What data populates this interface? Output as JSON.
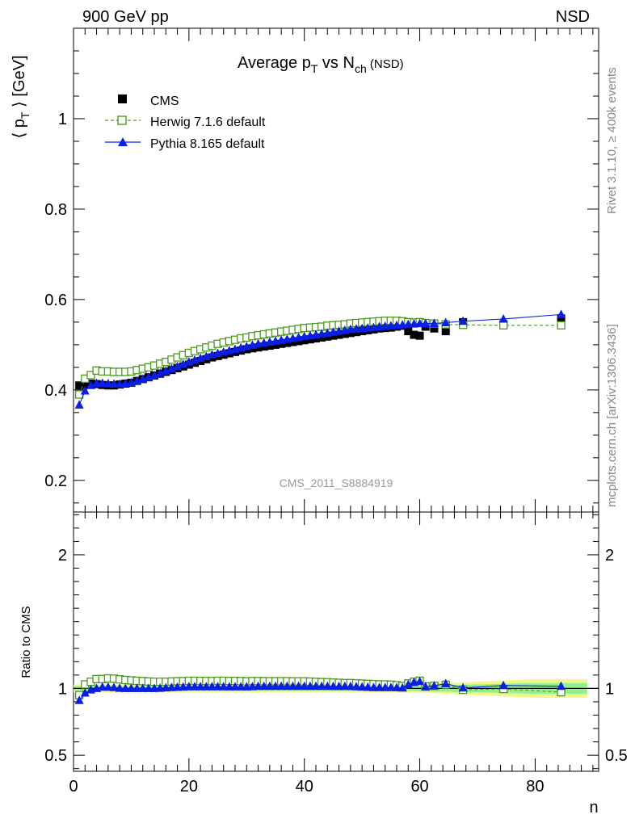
{
  "header": {
    "energy": "900 GeV pp",
    "process": "NSD",
    "title_main": "Average p",
    "title_sub_t": "T",
    "title_vs": " vs N",
    "title_sub_ch": "ch",
    "title_tail": " (NSD)",
    "ylabel_open": "⟨ p",
    "ylabel_sub": "T",
    "ylabel_close": " ⟩ [GeV]",
    "xlabel": "n",
    "ratio_label": "Ratio to CMS",
    "analysis": "CMS_2011_S8884919",
    "side_rivet": "Rivet 3.1.10, ≥ 400k events",
    "side_mcplots": "mcplots.cern.ch [arXiv:1306.3436]"
  },
  "colors": {
    "cms": "#000000",
    "herwig": "#4a9a1e",
    "pythia": "#0a1ee8",
    "band_outer": "#f3f78a",
    "band_inner": "#8ff28f"
  },
  "chart_data": {
    "type": "scatter",
    "xlim": [
      0,
      91
    ],
    "main": {
      "ylim": [
        0.13,
        1.2
      ],
      "yticks": [
        0.2,
        0.4,
        0.6,
        0.8,
        1
      ],
      "ytick_labels": [
        "0.2",
        "0.4",
        "0.6",
        "0.8",
        "1"
      ]
    },
    "ratio": {
      "ylim": [
        0.38,
        2.32
      ],
      "yticks": [
        0.5,
        1,
        2
      ],
      "ytick_labels": [
        "0.5",
        "1",
        "2"
      ]
    },
    "xticks": [
      0,
      20,
      40,
      60,
      80
    ],
    "xtick_labels": [
      "0",
      "20",
      "40",
      "60",
      "80"
    ],
    "legend": [
      {
        "key": "cms",
        "label": "CMS",
        "marker": "square-filled"
      },
      {
        "key": "herwig",
        "label": "Herwig 7.1.6 default",
        "marker": "square-open",
        "line": "dashed"
      },
      {
        "key": "pythia",
        "label": "Pythia 8.165 default",
        "marker": "triangle-filled",
        "line": "solid"
      }
    ],
    "x": [
      1,
      2,
      3,
      4,
      5,
      6,
      7,
      8,
      9,
      10,
      11,
      12,
      13,
      14,
      15,
      16,
      17,
      18,
      19,
      20,
      21,
      22,
      23,
      24,
      25,
      26,
      27,
      28,
      29,
      30,
      31,
      32,
      33,
      34,
      35,
      36,
      37,
      38,
      39,
      40,
      41,
      42,
      43,
      44,
      45,
      46,
      47,
      48,
      49,
      50,
      51,
      52,
      53,
      54,
      55,
      56,
      57,
      58,
      59,
      60,
      61,
      62.5,
      64.5,
      67.5,
      74.5,
      84.5
    ],
    "series": [
      {
        "name": "CMS",
        "key": "cms",
        "values": [
          0.41,
          0.412,
          0.414,
          0.413,
          0.411,
          0.41,
          0.41,
          0.412,
          0.414,
          0.416,
          0.42,
          0.424,
          0.428,
          0.432,
          0.436,
          0.44,
          0.444,
          0.448,
          0.452,
          0.456,
          0.46,
          0.464,
          0.468,
          0.472,
          0.475,
          0.478,
          0.481,
          0.484,
          0.487,
          0.49,
          0.492,
          0.494,
          0.496,
          0.498,
          0.5,
          0.502,
          0.504,
          0.506,
          0.508,
          0.51,
          0.512,
          0.514,
          0.516,
          0.518,
          0.52,
          0.522,
          0.524,
          0.526,
          0.528,
          0.53,
          0.532,
          0.534,
          0.536,
          0.537,
          0.538,
          0.54,
          0.542,
          0.53,
          0.522,
          0.52,
          0.54,
          0.536,
          0.53,
          0.55,
          0.545,
          0.558
        ]
      },
      {
        "name": "Herwig 7.1.6 default",
        "key": "herwig",
        "values": [
          0.39,
          0.425,
          0.433,
          0.443,
          0.441,
          0.441,
          0.44,
          0.44,
          0.44,
          0.441,
          0.444,
          0.447,
          0.45,
          0.454,
          0.458,
          0.462,
          0.467,
          0.472,
          0.477,
          0.482,
          0.486,
          0.49,
          0.494,
          0.498,
          0.502,
          0.505,
          0.508,
          0.511,
          0.514,
          0.516,
          0.519,
          0.521,
          0.523,
          0.525,
          0.527,
          0.529,
          0.531,
          0.533,
          0.535,
          0.537,
          0.538,
          0.539,
          0.54,
          0.542,
          0.543,
          0.544,
          0.545,
          0.547,
          0.548,
          0.549,
          0.55,
          0.551,
          0.552,
          0.553,
          0.553,
          0.553,
          0.552,
          0.55,
          0.549,
          0.55,
          0.548,
          0.547,
          0.545,
          0.544,
          0.543,
          0.543
        ]
      },
      {
        "name": "Pythia 8.165 default",
        "key": "pythia",
        "values": [
          0.367,
          0.398,
          0.41,
          0.415,
          0.415,
          0.414,
          0.413,
          0.413,
          0.414,
          0.416,
          0.42,
          0.424,
          0.428,
          0.432,
          0.437,
          0.442,
          0.447,
          0.452,
          0.457,
          0.462,
          0.466,
          0.47,
          0.474,
          0.478,
          0.481,
          0.484,
          0.487,
          0.49,
          0.493,
          0.496,
          0.499,
          0.502,
          0.504,
          0.506,
          0.508,
          0.51,
          0.512,
          0.514,
          0.516,
          0.518,
          0.52,
          0.522,
          0.524,
          0.526,
          0.528,
          0.53,
          0.532,
          0.534,
          0.535,
          0.536,
          0.537,
          0.538,
          0.54,
          0.541,
          0.542,
          0.543,
          0.544,
          0.545,
          0.546,
          0.547,
          0.547,
          0.547,
          0.549,
          0.552,
          0.557,
          0.567
        ]
      }
    ],
    "ratio_series": [
      {
        "name": "Herwig 7.1.6 default",
        "key": "herwig",
        "values": [
          0.95,
          1.03,
          1.05,
          1.07,
          1.07,
          1.075,
          1.073,
          1.068,
          1.063,
          1.06,
          1.057,
          1.055,
          1.052,
          1.05,
          1.05,
          1.05,
          1.052,
          1.054,
          1.055,
          1.057,
          1.057,
          1.056,
          1.056,
          1.055,
          1.057,
          1.057,
          1.056,
          1.056,
          1.055,
          1.053,
          1.055,
          1.055,
          1.054,
          1.054,
          1.054,
          1.054,
          1.054,
          1.053,
          1.053,
          1.053,
          1.051,
          1.049,
          1.047,
          1.046,
          1.044,
          1.042,
          1.04,
          1.04,
          1.038,
          1.036,
          1.034,
          1.032,
          1.03,
          1.03,
          1.028,
          1.024,
          1.018,
          1.037,
          1.05,
          1.058,
          1.015,
          1.02,
          1.028,
          0.99,
          0.996,
          0.972
        ]
      },
      {
        "name": "Pythia 8.165 default",
        "key": "pythia",
        "values": [
          0.91,
          0.966,
          0.99,
          1.0,
          1.01,
          1.01,
          1.007,
          1.002,
          1.0,
          1.0,
          1.0,
          1.0,
          1.0,
          1.0,
          1.002,
          1.005,
          1.007,
          1.009,
          1.011,
          1.013,
          1.013,
          1.013,
          1.013,
          1.013,
          1.013,
          1.013,
          1.012,
          1.012,
          1.012,
          1.012,
          1.014,
          1.016,
          1.016,
          1.016,
          1.016,
          1.016,
          1.016,
          1.016,
          1.016,
          1.016,
          1.016,
          1.016,
          1.016,
          1.016,
          1.015,
          1.015,
          1.015,
          1.015,
          1.013,
          1.011,
          1.009,
          1.007,
          1.007,
          1.007,
          1.007,
          1.006,
          1.004,
          1.028,
          1.046,
          1.052,
          1.013,
          1.02,
          1.036,
          1.004,
          1.022,
          1.016
        ]
      }
    ],
    "ratio_band": {
      "inner": [
        [
          0,
          0.985,
          1.015
        ],
        [
          55,
          0.985,
          1.015
        ],
        [
          80,
          0.96,
          1.04
        ],
        [
          89,
          0.96,
          1.04
        ]
      ],
      "outer": [
        [
          0,
          0.97,
          1.03
        ],
        [
          55,
          0.97,
          1.03
        ],
        [
          62,
          0.965,
          1.035
        ],
        [
          80,
          0.93,
          1.07
        ],
        [
          89,
          0.93,
          1.07
        ]
      ]
    }
  }
}
